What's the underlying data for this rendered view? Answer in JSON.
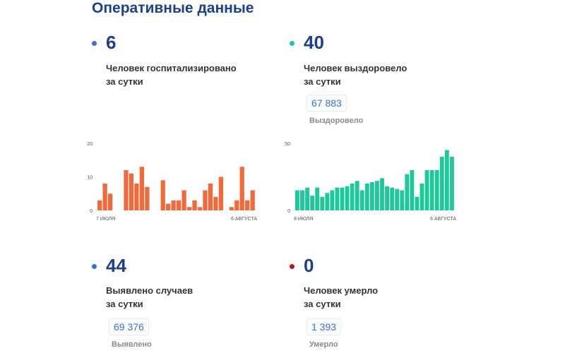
{
  "page_title": "Оперативные данные",
  "colors": {
    "title": "#1d3f8f",
    "dot_blue": "#3c6fd6",
    "dot_teal": "#1ec6a4",
    "dot_red": "#c0112b",
    "bar_orange": "#f26a3c",
    "bar_teal": "#1dc99a"
  },
  "stats": {
    "hospitalized": {
      "value": "6",
      "line1": "Человек госпитализировано",
      "line2": "за сутки"
    },
    "recovered": {
      "value": "40",
      "line1": "Человек выздоровело",
      "line2": "за сутки",
      "total": "67 883",
      "total_label": "Выздоровело"
    },
    "cases": {
      "value": "44",
      "line1": "Выявлено случаев",
      "line2": "за сутки",
      "total": "69 376",
      "total_label": "Выявлено"
    },
    "deaths": {
      "value": "0",
      "line1": "Человек умерло",
      "line2": "за сутки",
      "total": "1 393",
      "total_label": "Умерло"
    }
  },
  "chart_data": [
    {
      "type": "bar",
      "color": "#f26a3c",
      "ylim": [
        0,
        20
      ],
      "yticks": [
        "20",
        "10",
        "0"
      ],
      "x_start_label": "7 ИЮЛЯ",
      "x_end_label": "6 АВГУСТА",
      "values": [
        3,
        8,
        5,
        0,
        0,
        12,
        11,
        8,
        13,
        7,
        0,
        0,
        9,
        2,
        3,
        3,
        6,
        1,
        3,
        1,
        6,
        8,
        4,
        10,
        0,
        1,
        3,
        13,
        3,
        6
      ]
    },
    {
      "type": "bar",
      "color": "#1dc99a",
      "ylim": [
        0,
        50
      ],
      "yticks": [
        "50",
        "0"
      ],
      "x_start_label": "8 ИЮЛЯ",
      "x_end_label": "6 АВГУСТА",
      "values": [
        15,
        15,
        17,
        11,
        17,
        10,
        13,
        15,
        17,
        17,
        18,
        20,
        22,
        15,
        20,
        21,
        22,
        24,
        18,
        17,
        16,
        15,
        27,
        30,
        10,
        20,
        30,
        30,
        30,
        40,
        45,
        40
      ]
    }
  ]
}
